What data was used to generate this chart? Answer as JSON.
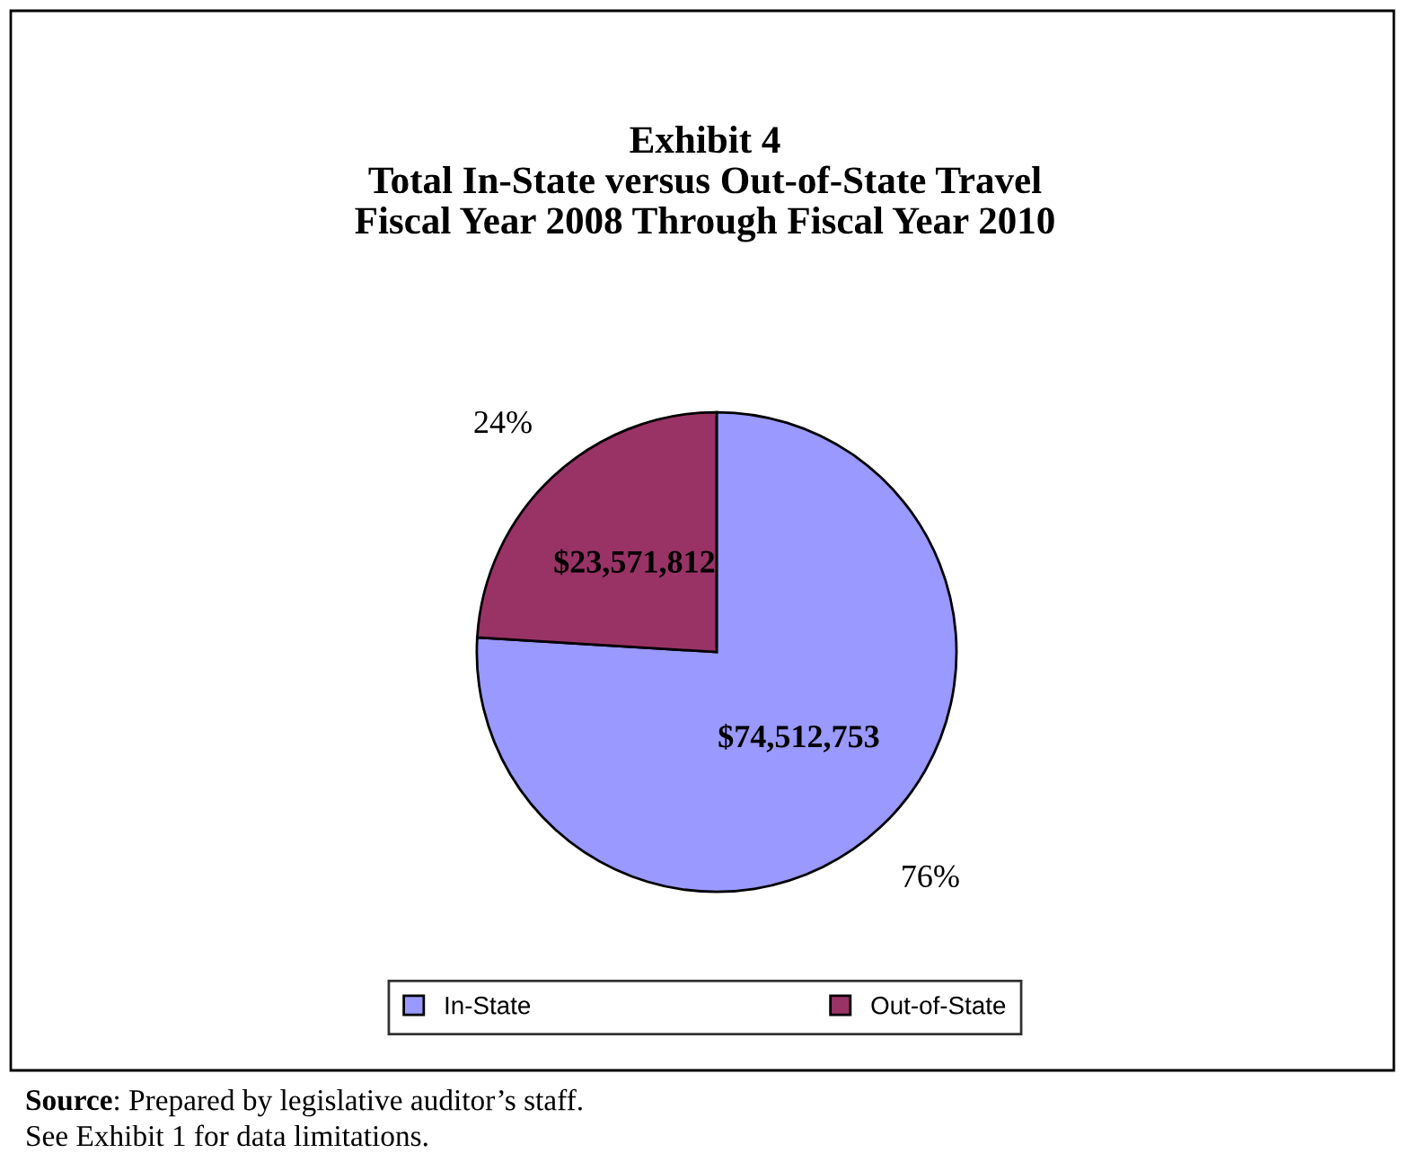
{
  "chart_data": {
    "type": "pie",
    "title": "Exhibit 4\nTotal In-State versus Out-of-State Travel\nFiscal Year 2008 Through Fiscal Year 2010",
    "categories": [
      "In-State",
      "Out-of-State"
    ],
    "values": [
      74512753,
      23571812
    ],
    "colors": [
      "#9999ff",
      "#993366"
    ],
    "value_labels": [
      "$74,512,753",
      "$23,571,812"
    ],
    "legend": "bottom",
    "annotations": [
      {
        "text": "76%",
        "x": "In-State"
      },
      {
        "text": "24%",
        "x": "Out-of-State"
      },
      "Source: Prepared by legislative auditor’s staff.",
      "See Exhibit 1 for data limitations."
    ]
  }
}
